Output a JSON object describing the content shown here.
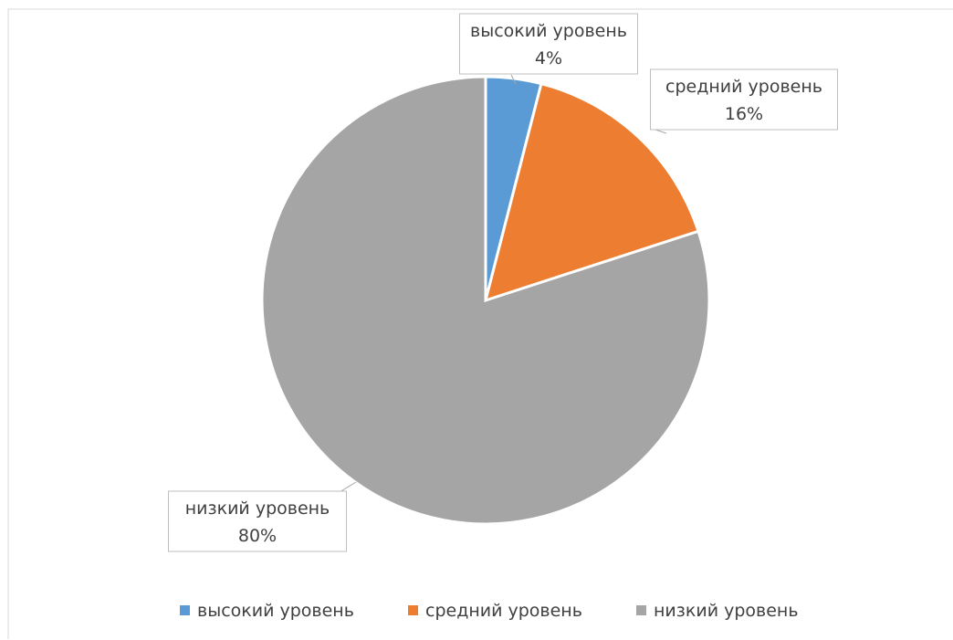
{
  "chart_data": {
    "type": "pie",
    "categories": [
      "высокий уровень",
      "средний уровень",
      "низкий уровень"
    ],
    "values": [
      4,
      16,
      80
    ],
    "value_labels": [
      "4%",
      "16%",
      "80%"
    ],
    "colors": [
      "#5b9bd5",
      "#ed7d31",
      "#a5a5a5"
    ],
    "start_angle": "12 o'clock, clockwise",
    "legend": {
      "position": "bottom",
      "items": [
        "высокий уровень",
        "средний уровень",
        "низкий уровень"
      ]
    },
    "data_labels": "category and percent in callout boxes"
  }
}
